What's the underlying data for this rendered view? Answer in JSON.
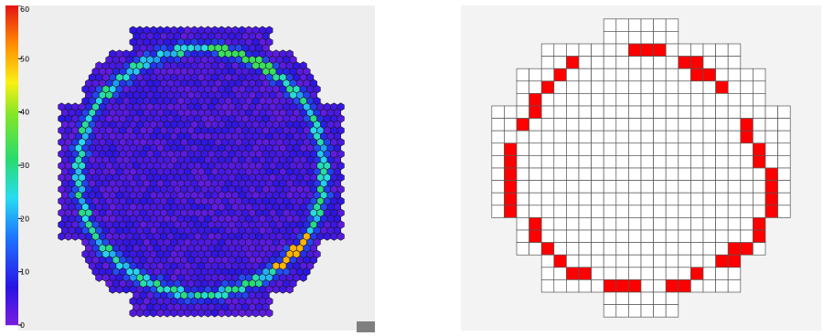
{
  "left_plot": {
    "colorbar_ticks": [
      "0",
      "10",
      "20",
      "30",
      "40",
      "50",
      "60"
    ],
    "colorbar_max": 60,
    "plot_bg": "#eeeeee",
    "base_cell_color": "#6a2fc4",
    "cell_stroke": "#1a1a1a",
    "outline_shape": {
      "type": "octagonal-disc",
      "core_radius": 0.8,
      "outer_box": 0.86,
      "corner_cut": 0.42
    },
    "ring": {
      "radius": 0.745,
      "typical_value": 25,
      "hotspot_value": 50,
      "halo_value": 8
    }
  },
  "right_plot": {
    "grid_cols": 24,
    "grid_rows": 24,
    "grid_stroke": "#555555",
    "active_color": "#ff0000",
    "background": "#f3f3f3",
    "row_spans": [
      [
        9,
        14
      ],
      [
        9,
        14
      ],
      [
        4,
        19
      ],
      [
        4,
        19
      ],
      [
        2,
        21
      ],
      [
        2,
        21
      ],
      [
        2,
        21
      ],
      [
        0,
        23
      ],
      [
        0,
        23
      ],
      [
        0,
        23
      ],
      [
        0,
        23
      ],
      [
        0,
        23
      ],
      [
        0,
        23
      ],
      [
        0,
        23
      ],
      [
        0,
        23
      ],
      [
        0,
        23
      ],
      [
        2,
        21
      ],
      [
        2,
        21
      ],
      [
        2,
        21
      ],
      [
        4,
        19
      ],
      [
        4,
        19
      ],
      [
        4,
        19
      ],
      [
        9,
        14
      ],
      [
        9,
        14
      ]
    ],
    "active_cells": [
      [
        2,
        11
      ],
      [
        2,
        12
      ],
      [
        2,
        13
      ],
      [
        3,
        6
      ],
      [
        3,
        15
      ],
      [
        3,
        16
      ],
      [
        4,
        5
      ],
      [
        4,
        16
      ],
      [
        4,
        17
      ],
      [
        5,
        4
      ],
      [
        5,
        18
      ],
      [
        6,
        3
      ],
      [
        7,
        3
      ],
      [
        8,
        2
      ],
      [
        8,
        20
      ],
      [
        9,
        20
      ],
      [
        10,
        1
      ],
      [
        10,
        21
      ],
      [
        11,
        1
      ],
      [
        11,
        21
      ],
      [
        12,
        1
      ],
      [
        12,
        22
      ],
      [
        13,
        1
      ],
      [
        13,
        22
      ],
      [
        14,
        1
      ],
      [
        14,
        22
      ],
      [
        15,
        1
      ],
      [
        15,
        22
      ],
      [
        16,
        21
      ],
      [
        17,
        21
      ],
      [
        16,
        3
      ],
      [
        17,
        3
      ],
      [
        18,
        4
      ],
      [
        18,
        19
      ],
      [
        18,
        20
      ],
      [
        19,
        5
      ],
      [
        19,
        18
      ],
      [
        19,
        19
      ],
      [
        20,
        6
      ],
      [
        20,
        7
      ],
      [
        20,
        16
      ],
      [
        21,
        9
      ],
      [
        21,
        10
      ],
      [
        21,
        11
      ],
      [
        21,
        14
      ],
      [
        21,
        15
      ]
    ]
  }
}
